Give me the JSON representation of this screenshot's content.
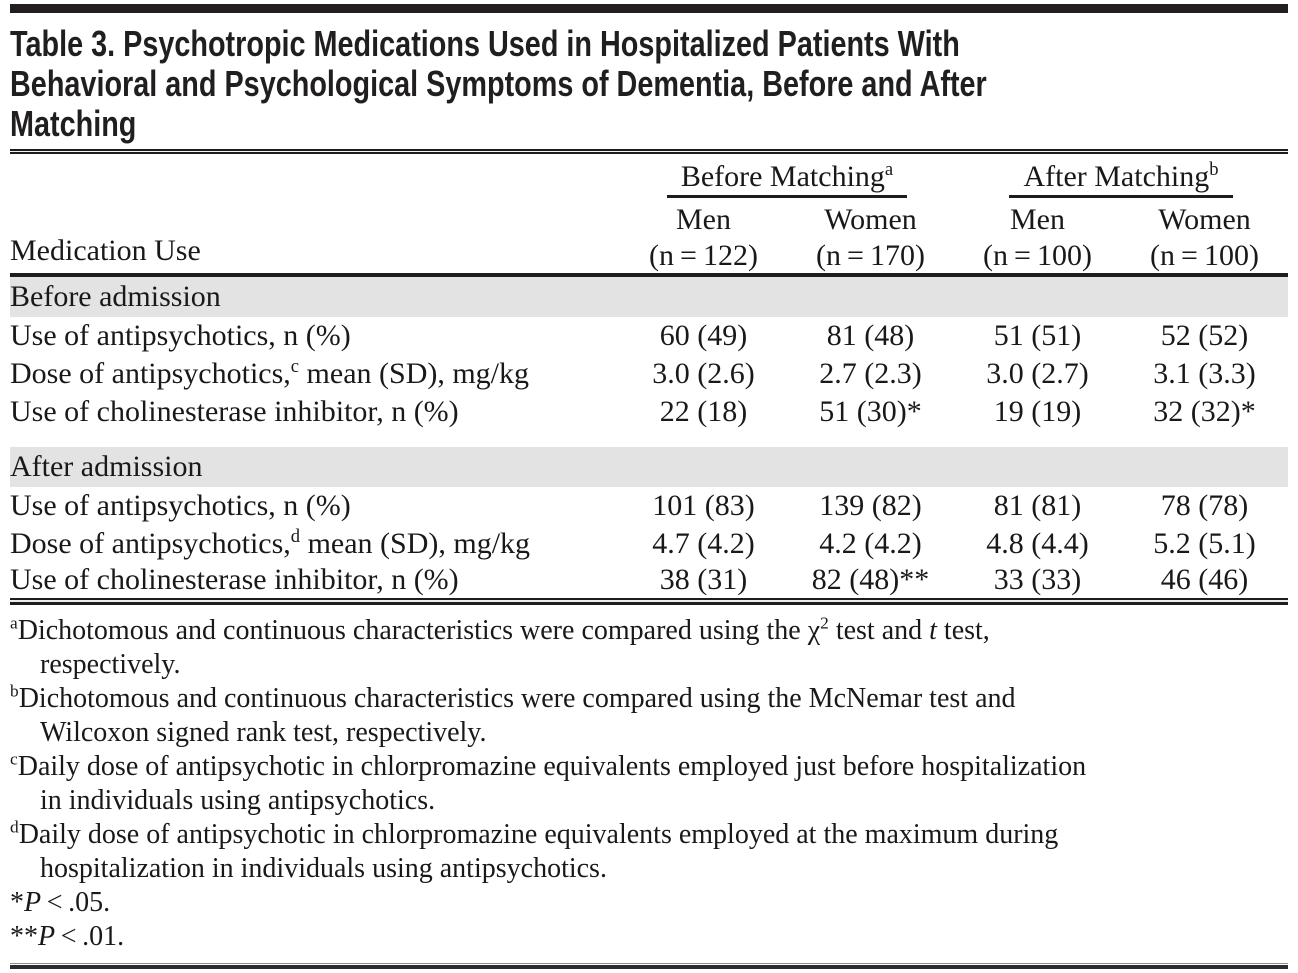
{
  "table": {
    "title": {
      "lines": [
        "Table 3. Psychotropic Medications Used in Hospitalized Patients With",
        "Behavioral and Psychological Symptoms of Dementia, Before and After",
        "Matching"
      ]
    },
    "header": {
      "stub_label": "Medication Use",
      "groups": [
        {
          "name": "Before Matching",
          "sup": "a",
          "cols": [
            {
              "sex": "Men",
              "n": "(n = 122)"
            },
            {
              "sex": "Women",
              "n": "(n = 170)"
            }
          ]
        },
        {
          "name": "After Matching",
          "sup": "b",
          "cols": [
            {
              "sex": "Men",
              "n": "(n = 100)"
            },
            {
              "sex": "Women",
              "n": "(n = 100)"
            }
          ]
        }
      ]
    },
    "sections": [
      {
        "label": "Before admission",
        "rows": [
          {
            "label": [
              {
                "t": "Use of antipsychotics, n (%)"
              }
            ],
            "values": [
              "60 (49)",
              "81 (48)",
              "51 (51)",
              "52 (52)"
            ]
          },
          {
            "label": [
              {
                "t": "Dose of antipsychotics,"
              },
              {
                "sup": "c"
              },
              {
                "t": " mean (SD), mg/kg"
              }
            ],
            "values": [
              "3.0 (2.6)",
              "2.7 (2.3)",
              "3.0 (2.7)",
              "3.1 (3.3)"
            ]
          },
          {
            "label": [
              {
                "t": "Use of cholinesterase inhibitor, n (%)"
              }
            ],
            "values": [
              "22 (18)",
              "51 (30)*",
              "19 (19)",
              "32 (32)*"
            ]
          }
        ]
      },
      {
        "label": "After admission",
        "rows": [
          {
            "label": [
              {
                "t": "Use of antipsychotics, n (%)"
              }
            ],
            "values": [
              "101 (83)",
              "139 (82)",
              "81 (81)",
              "78 (78)"
            ]
          },
          {
            "label": [
              {
                "t": "Dose of antipsychotics,"
              },
              {
                "sup": "d"
              },
              {
                "t": " mean (SD), mg/kg"
              }
            ],
            "values": [
              "4.7 (4.2)",
              "4.2 (4.2)",
              "4.8 (4.4)",
              "5.2 (5.1)"
            ]
          },
          {
            "label": [
              {
                "t": "Use of cholinesterase inhibitor, n (%)"
              }
            ],
            "values": [
              "38 (31)",
              "82 (48)**",
              "33 (33)",
              "46 (46)"
            ]
          }
        ]
      }
    ],
    "footnotes": [
      {
        "lines": [
          {
            "segments": [
              {
                "sup": "a"
              },
              {
                "t": "Dichotomous and continuous characteristics were compared using the χ"
              },
              {
                "sup": "2"
              },
              {
                "t": " test and "
              },
              {
                "i": "t"
              },
              {
                "t": " test,"
              }
            ]
          },
          {
            "indent": true,
            "segments": [
              {
                "t": "respectively."
              }
            ]
          }
        ]
      },
      {
        "lines": [
          {
            "segments": [
              {
                "sup": "b"
              },
              {
                "t": "Dichotomous and continuous characteristics were compared using the McNemar test and"
              }
            ]
          },
          {
            "indent": true,
            "segments": [
              {
                "t": "Wilcoxon signed rank test, respectively."
              }
            ]
          }
        ]
      },
      {
        "lines": [
          {
            "segments": [
              {
                "sup": "c"
              },
              {
                "t": "Daily dose of antipsychotic in chlorpromazine equivalents employed just before hospitalization"
              }
            ]
          },
          {
            "indent": true,
            "segments": [
              {
                "t": "in individuals using antipsychotics."
              }
            ]
          }
        ]
      },
      {
        "lines": [
          {
            "segments": [
              {
                "sup": "d"
              },
              {
                "t": "Daily dose of antipsychotic in chlorpromazine equivalents employed at the maximum during"
              }
            ]
          },
          {
            "indent": true,
            "segments": [
              {
                "t": "hospitalization in individuals using antipsychotics."
              }
            ]
          }
        ]
      },
      {
        "lines": [
          {
            "segments": [
              {
                "t": "*"
              },
              {
                "i": "P"
              },
              {
                "t": " < .05."
              }
            ]
          }
        ]
      },
      {
        "lines": [
          {
            "segments": [
              {
                "t": "**"
              },
              {
                "i": "P"
              },
              {
                "t": " < .01."
              }
            ]
          }
        ]
      }
    ],
    "colors": {
      "accent_bar": "#231f20",
      "section_band": "#e3e3e3",
      "rule": "#1d1d1d",
      "text": "#1b1818"
    }
  }
}
